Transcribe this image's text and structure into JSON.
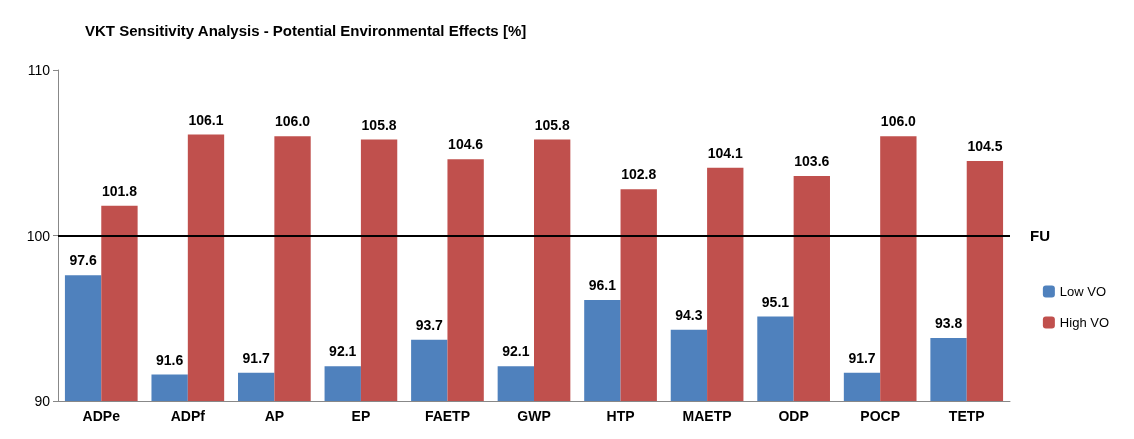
{
  "chart_data": {
    "type": "bar",
    "title": "VKT Sensitivity Analysis - Potential Environmental Effects [%]",
    "categories": [
      "ADPe",
      "ADPf",
      "AP",
      "EP",
      "FAETP",
      "GWP",
      "HTP",
      "MAETP",
      "ODP",
      "POCP",
      "TETP"
    ],
    "series": [
      {
        "name": "Low VO",
        "color": "#4f81bd",
        "values": [
          97.6,
          91.6,
          91.7,
          92.1,
          93.7,
          92.1,
          96.1,
          94.3,
          95.1,
          91.7,
          93.8
        ],
        "value_labels": [
          "97.6",
          "91.6",
          "91.7",
          "92.1",
          "93.7",
          "92.1",
          "96.1",
          "94.3",
          "95.1",
          "91.7",
          "93.8"
        ]
      },
      {
        "name": "High VO",
        "color": "#c0504d",
        "values": [
          101.8,
          106.1,
          106.0,
          105.8,
          104.6,
          105.8,
          102.8,
          104.1,
          103.6,
          106.0,
          104.5
        ],
        "value_labels": [
          "101.8",
          "106.1",
          "106.0",
          "105.8",
          "104.6",
          "105.8",
          "102.8",
          "104.1",
          "103.6",
          "106.0",
          "104.5"
        ]
      }
    ],
    "ylim": [
      90,
      110
    ],
    "yticks": [
      90,
      100,
      110
    ],
    "grid": false,
    "legend": "right",
    "ref_lines": [
      {
        "axis": "y",
        "value": 100,
        "label": "FU",
        "color": "#000000"
      }
    ]
  }
}
